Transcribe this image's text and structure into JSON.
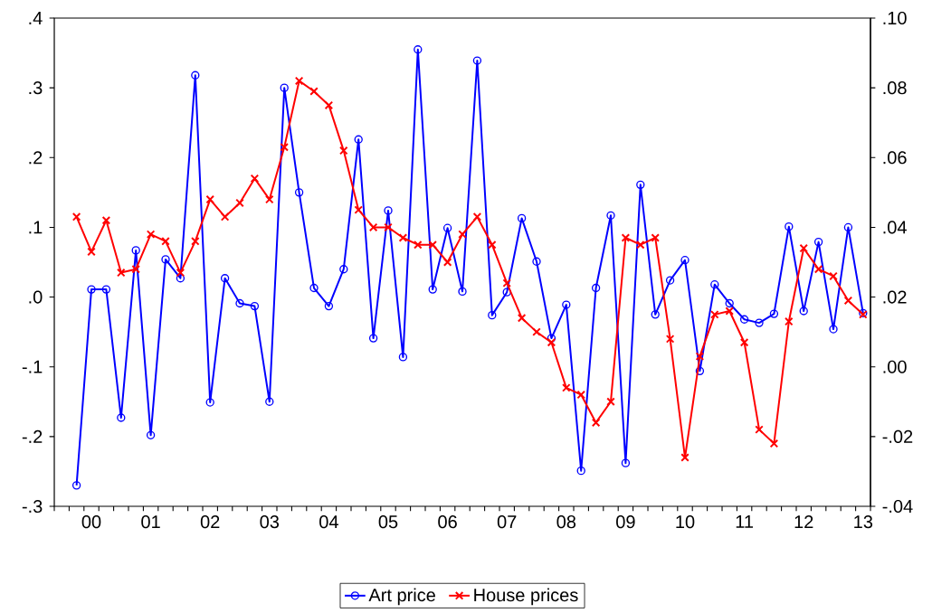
{
  "chart_data": {
    "type": "line",
    "legend": "bottom",
    "categories": [
      null,
      "00",
      null,
      null,
      null,
      "01",
      null,
      null,
      null,
      "02",
      null,
      null,
      null,
      "03",
      null,
      null,
      null,
      "04",
      null,
      null,
      null,
      "05",
      null,
      null,
      null,
      "06",
      null,
      null,
      null,
      "07",
      null,
      null,
      null,
      "08",
      null,
      null,
      null,
      "09",
      null,
      null,
      null,
      "10",
      null,
      null,
      null,
      "11",
      null,
      null,
      null,
      "12",
      null,
      null,
      null,
      "13"
    ],
    "ylim": [
      -0.3,
      0.4
    ],
    "yticks": [
      {
        "value": -0.3,
        "label": "-.3"
      },
      {
        "value": -0.2,
        "label": "-.2"
      },
      {
        "value": -0.1,
        "label": "-.1"
      },
      {
        "value": 0,
        "label": ".0"
      },
      {
        "value": 0.1,
        "label": ".1"
      },
      {
        "value": 0.2,
        "label": ".2"
      },
      {
        "value": 0.3,
        "label": ".3"
      },
      {
        "value": 0.4,
        "label": ".4"
      }
    ],
    "y2lim": [
      -0.04,
      0.1
    ],
    "y2ticks": [
      {
        "value": -0.04,
        "label": "-.04"
      },
      {
        "value": -0.02,
        "label": "-.02"
      },
      {
        "value": 0,
        "label": ".00"
      },
      {
        "value": 0.02,
        "label": ".02"
      },
      {
        "value": 0.04,
        "label": ".04"
      },
      {
        "value": 0.06,
        "label": ".06"
      },
      {
        "value": 0.08,
        "label": ".08"
      },
      {
        "value": 0.1,
        "label": ".10"
      }
    ],
    "series": [
      {
        "name": "Art price",
        "color": "#0000ff",
        "marker": "circle",
        "values": [
          -0.27,
          0.011,
          0.011,
          -0.173,
          0.067,
          -0.198,
          0.054,
          0.027,
          0.318,
          -0.151,
          0.027,
          -0.009,
          -0.013,
          -0.15,
          0.3,
          0.15,
          0.013,
          -0.013,
          0.04,
          0.226,
          -0.059,
          0.124,
          -0.086,
          0.355,
          0.011,
          0.099,
          0.008,
          0.339,
          -0.026,
          0.007,
          0.113,
          0.051,
          -0.059,
          -0.011,
          -0.249,
          0.013,
          0.117,
          -0.238,
          0.161,
          -0.025,
          0.024,
          0.053,
          -0.106,
          0.018,
          -0.009,
          -0.032,
          -0.037,
          -0.024,
          0.101,
          -0.02,
          0.079,
          -0.046,
          0.1,
          -0.023
        ]
      },
      {
        "name": "House prices",
        "color": "#ff0000",
        "marker": "cross",
        "axis": "y2",
        "values": [
          0.043,
          0.033,
          0.042,
          0.027,
          0.028,
          0.038,
          0.036,
          0.027,
          0.036,
          0.048,
          0.043,
          0.047,
          0.054,
          0.048,
          0.063,
          0.082,
          0.079,
          0.075,
          0.062,
          0.045,
          0.04,
          0.04,
          0.037,
          0.035,
          0.035,
          0.03,
          0.038,
          0.043,
          0.035,
          0.024,
          0.014,
          0.01,
          0.007,
          -0.006,
          -0.008,
          -0.016,
          -0.01,
          0.037,
          0.035,
          0.037,
          0.008,
          -0.026,
          0.003,
          0.015,
          0.016,
          0.007,
          -0.018,
          -0.022,
          0.013,
          0.034,
          0.028,
          0.026,
          0.019,
          0.015
        ]
      }
    ]
  }
}
